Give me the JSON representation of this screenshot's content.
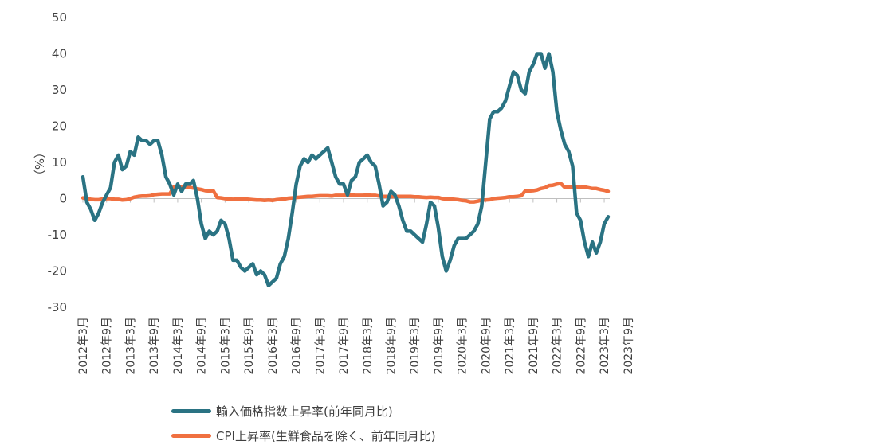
{
  "chart_data": {
    "type": "line",
    "ylabel": "（%）",
    "ylim": [
      -30,
      50
    ],
    "yticks": [
      "50",
      "40",
      "30",
      "20",
      "10",
      "0",
      "-10",
      "-20",
      "-30"
    ],
    "xtick_labels": [
      "2012年3月",
      "2012年9月",
      "2013年3月",
      "2013年9月",
      "2014年3月",
      "2014年9月",
      "2015年3月",
      "2015年9月",
      "2016年3月",
      "2016年9月",
      "2017年3月",
      "2017年9月",
      "2018年3月",
      "2018年9月",
      "2019年3月",
      "2019年9月",
      "2020年3月",
      "2020年9月",
      "2021年3月",
      "2021年9月",
      "2022年3月",
      "2022年9月",
      "2023年3月",
      "2023年9月"
    ],
    "legend_position": "bottom",
    "series": [
      {
        "name": "輸入価格指数上昇率(前年同月比)",
        "color": "#2A7383",
        "values": [
          6,
          -1,
          -3,
          -6,
          -4,
          -1,
          1,
          3,
          10,
          12,
          8,
          9,
          13,
          12,
          17,
          16,
          16,
          15,
          16,
          16,
          12,
          6,
          4,
          1,
          4,
          2,
          4,
          4,
          5,
          0,
          -7,
          -11,
          -9,
          -10,
          -9,
          -6,
          -7,
          -11,
          -17,
          -17,
          -19,
          -20,
          -19,
          -18,
          -21,
          -20,
          -21,
          -24,
          -23,
          -22,
          -18,
          -16,
          -11,
          -4,
          4,
          9,
          11,
          10,
          12,
          11,
          12,
          13,
          14,
          10,
          6,
          4,
          4,
          1,
          5,
          6,
          10,
          11,
          12,
          10,
          9,
          4,
          -2,
          -1,
          2,
          1,
          -2,
          -6,
          -9,
          -9,
          -10,
          -11,
          -12,
          -7,
          -1,
          -2,
          -8,
          -16,
          -20,
          -17,
          -13,
          -11,
          -11,
          -11,
          -10,
          -9,
          -7,
          -2,
          10,
          22,
          24,
          24,
          25,
          27,
          31,
          35,
          34,
          30,
          29,
          35,
          37,
          40,
          40,
          36,
          40,
          35,
          24,
          19,
          15,
          13,
          9,
          -4,
          -6,
          -12,
          -16,
          -12,
          -15,
          -12,
          -7,
          -5
        ]
      },
      {
        "name": "CPI上昇率(生鮮食品を除く、前年同月比)",
        "color": "#F07040",
        "values": [
          0.2,
          0,
          -0.2,
          -0.3,
          -0.3,
          -0.1,
          0,
          0,
          -0.2,
          -0.2,
          -0.4,
          -0.3,
          0,
          0.4,
          0.6,
          0.7,
          0.7,
          0.8,
          1.1,
          1.2,
          1.3,
          1.3,
          1.3,
          3.2,
          3.4,
          3.3,
          3.2,
          3.1,
          2.9,
          2.7,
          2.5,
          2.2,
          2.1,
          2.2,
          0.3,
          0.2,
          0,
          -0.1,
          -0.2,
          -0.1,
          -0.1,
          -0.1,
          -0.2,
          -0.3,
          -0.4,
          -0.4,
          -0.5,
          -0.4,
          -0.5,
          -0.3,
          -0.2,
          -0.1,
          0.1,
          0.2,
          0.3,
          0.4,
          0.5,
          0.6,
          0.6,
          0.7,
          0.8,
          0.8,
          0.8,
          0.7,
          0.9,
          0.9,
          0.9,
          1,
          1,
          0.9,
          0.9,
          0.9,
          1,
          0.9,
          0.9,
          0.7,
          0.6,
          0.6,
          0.5,
          0.6,
          0.6,
          0.6,
          0.6,
          0.6,
          0.5,
          0.5,
          0.4,
          0.3,
          0.4,
          0.3,
          0.3,
          0,
          -0.1,
          -0.1,
          -0.2,
          -0.3,
          -0.5,
          -0.6,
          -0.9,
          -0.9,
          -0.7,
          -0.4,
          -0.4,
          -0.3,
          0,
          0.1,
          0.2,
          0.3,
          0.5,
          0.5,
          0.6,
          0.8,
          2.1,
          2.1,
          2.2,
          2.4,
          2.8,
          3,
          3.6,
          3.7,
          4,
          4.2,
          3.1,
          3.2,
          3.1,
          3.3,
          3.1,
          3.2,
          3,
          2.8,
          2.8,
          2.5,
          2.3,
          2
        ]
      }
    ]
  }
}
